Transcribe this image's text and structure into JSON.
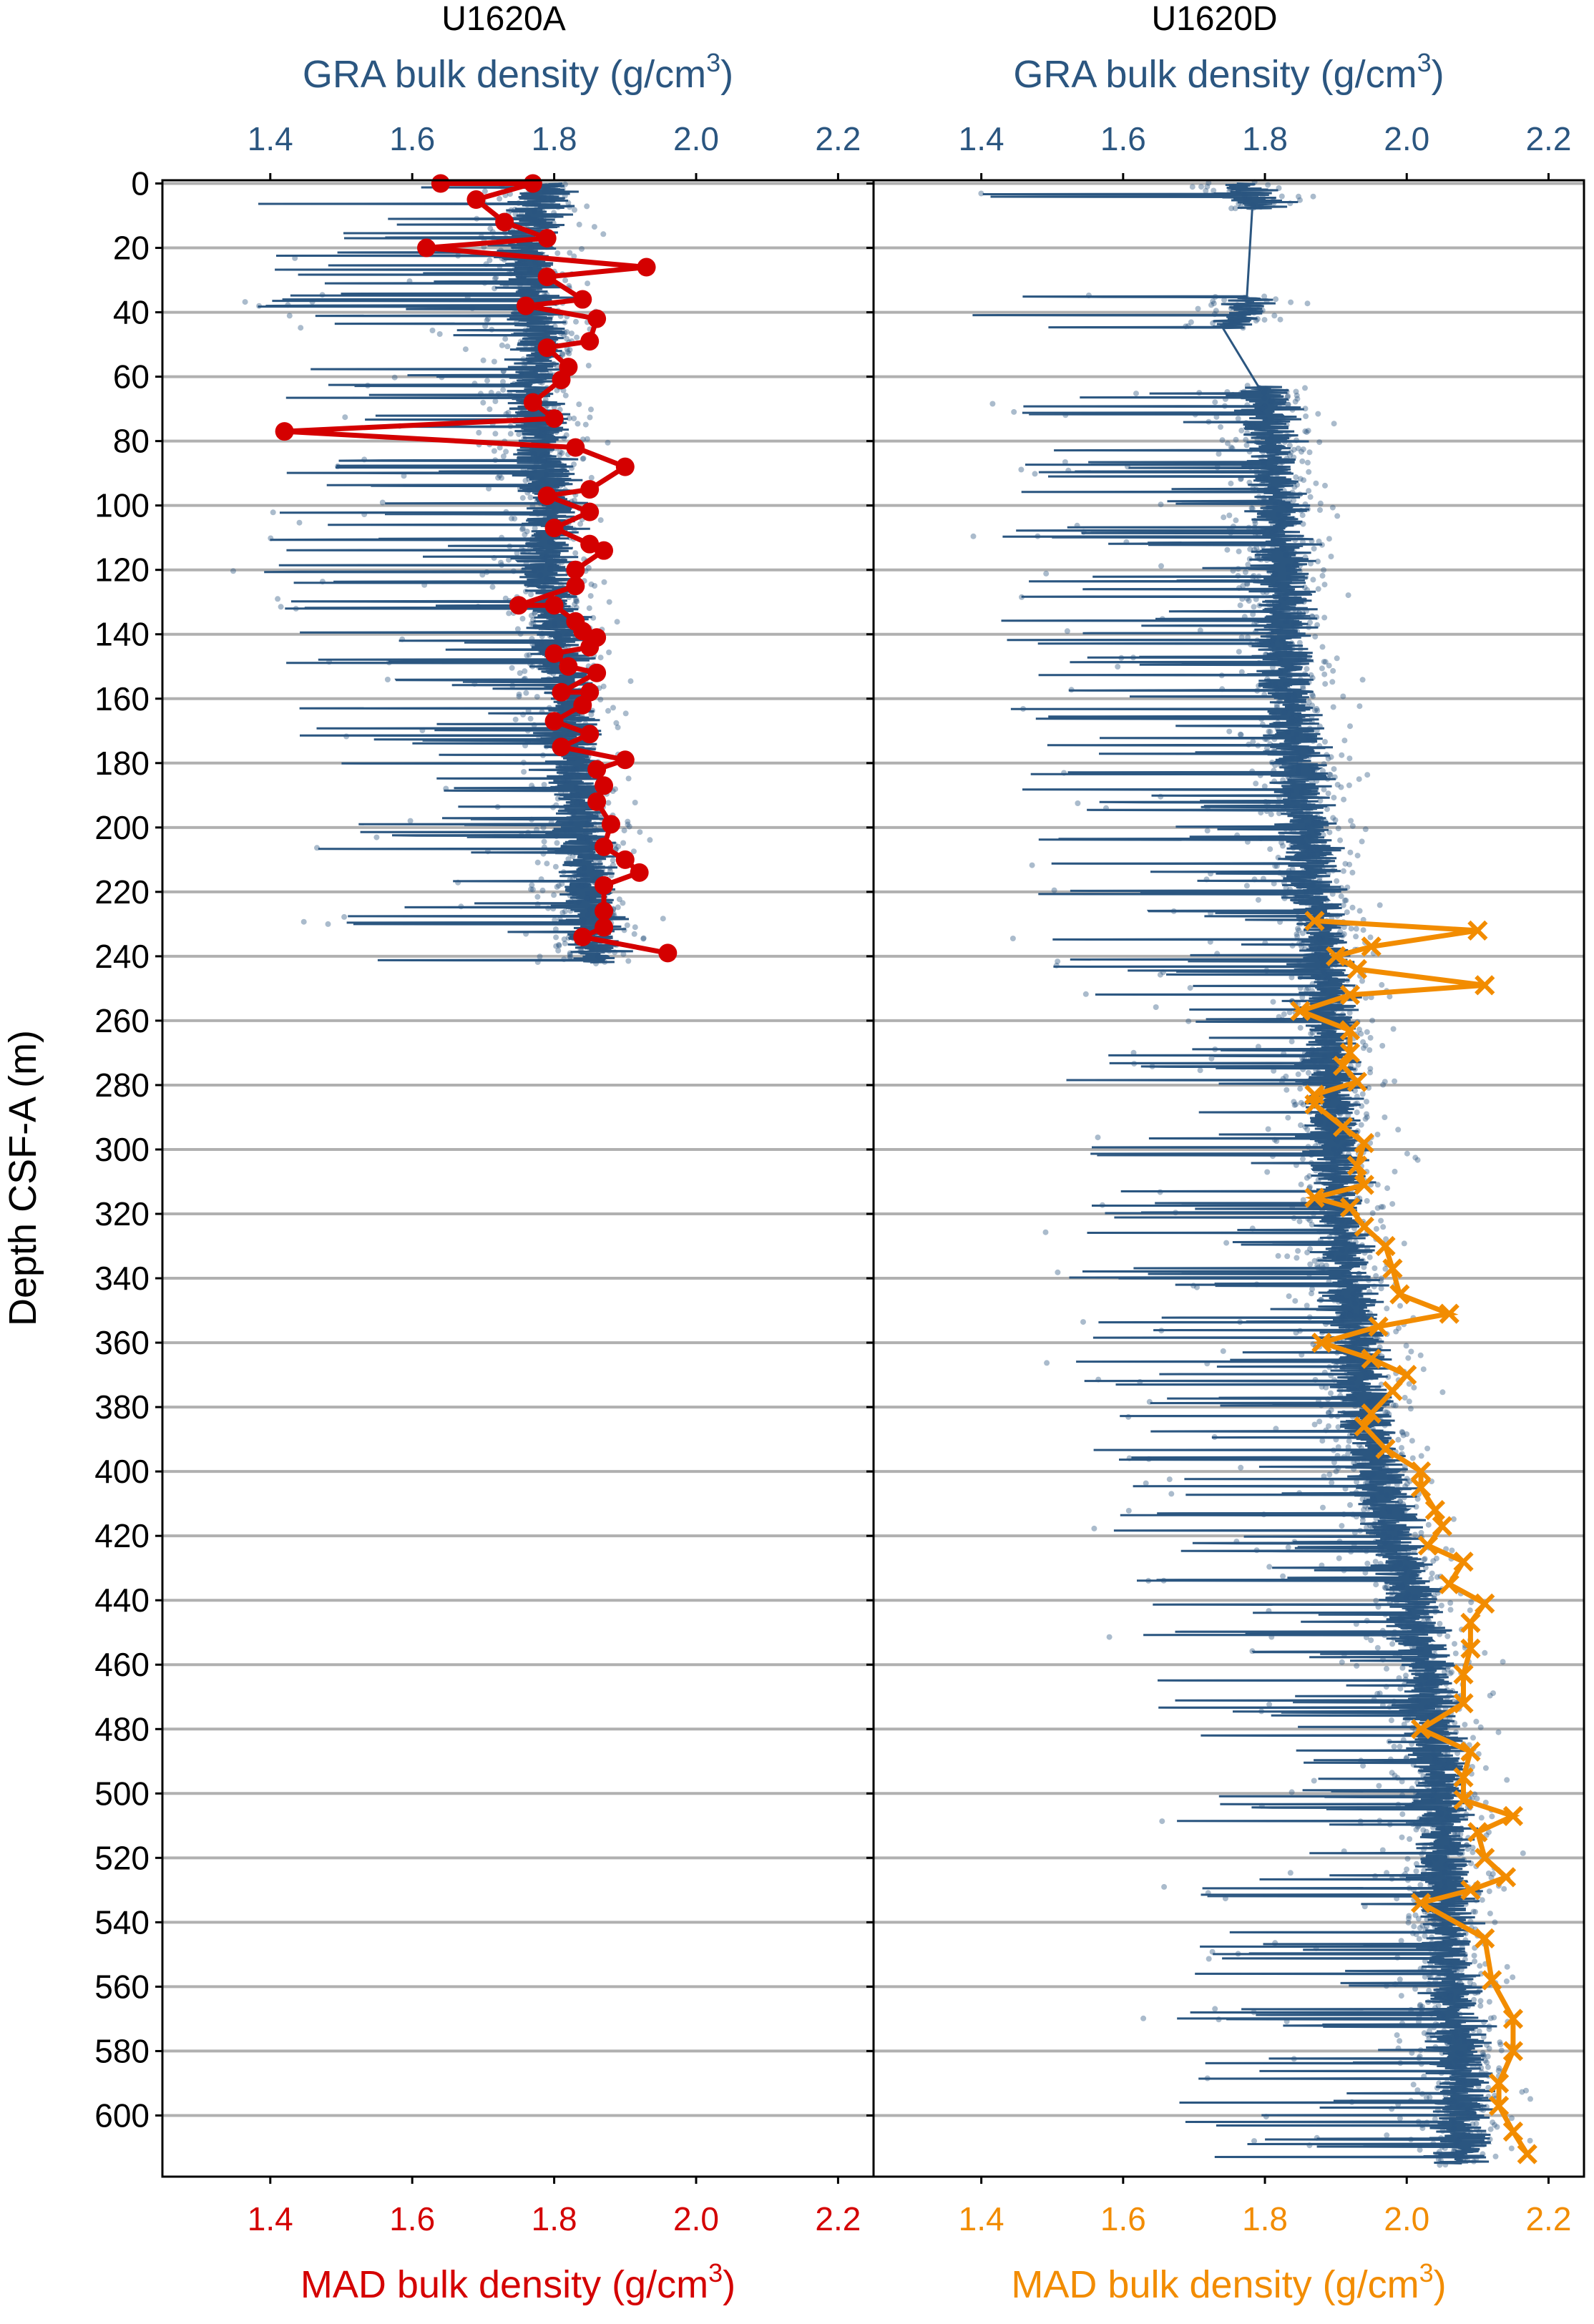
{
  "chart_data": [
    {
      "type": "scatter",
      "title": "U1620A",
      "top_axis": {
        "label_pre": "GRA bulk density (g/cm",
        "label_sup": "3",
        "label_post": ")",
        "color": "#2b5680"
      },
      "bottom_axis": {
        "label_pre": "MAD bulk density (g/cm",
        "label_sup": "3",
        "label_post": ")",
        "color": "#d40000"
      },
      "ylabel": "Depth CSF-A (m)",
      "xlim": [
        1.248,
        2.25
      ],
      "ylim": [
        619,
        -1
      ],
      "xticks": [
        "1.4",
        "1.6",
        "1.8",
        "2.0",
        "2.2"
      ],
      "yticks": [
        "0",
        "20",
        "40",
        "60",
        "80",
        "100",
        "120",
        "140",
        "160",
        "180",
        "200",
        "220",
        "240",
        "260",
        "280",
        "300",
        "320",
        "340",
        "360",
        "380",
        "400",
        "420",
        "440",
        "460",
        "480",
        "500",
        "520",
        "540",
        "560",
        "580",
        "600"
      ],
      "grid": "horizontal",
      "gra_trend": {
        "depth": [
          0,
          20,
          40,
          60,
          80,
          100,
          120,
          140,
          160,
          180,
          200,
          220,
          242
        ],
        "density": [
          1.79,
          1.76,
          1.78,
          1.77,
          1.78,
          1.8,
          1.79,
          1.81,
          1.82,
          1.83,
          1.84,
          1.85,
          1.86
        ],
        "spread": 0.07
      },
      "mad": {
        "marker": "circle",
        "color": "#d40000",
        "depth": [
          0,
          0,
          5,
          12,
          17,
          20,
          26,
          29,
          36,
          38,
          42,
          49,
          51,
          57,
          61,
          68,
          73,
          77,
          82,
          88,
          95,
          97,
          102,
          107,
          112,
          114,
          120,
          125,
          131,
          131,
          136,
          139,
          141,
          144,
          146,
          150,
          152,
          158,
          158,
          162,
          167,
          171,
          175,
          179,
          182,
          187,
          192,
          199,
          206,
          210,
          214,
          218,
          226,
          231,
          234,
          239
        ],
        "density": [
          1.64,
          1.77,
          1.69,
          1.73,
          1.79,
          1.62,
          1.93,
          1.79,
          1.84,
          1.76,
          1.86,
          1.85,
          1.79,
          1.82,
          1.81,
          1.77,
          1.8,
          1.42,
          1.83,
          1.9,
          1.85,
          1.79,
          1.85,
          1.8,
          1.85,
          1.87,
          1.83,
          1.83,
          1.75,
          1.8,
          1.83,
          1.84,
          1.86,
          1.85,
          1.8,
          1.82,
          1.86,
          1.81,
          1.85,
          1.84,
          1.8,
          1.85,
          1.81,
          1.9,
          1.86,
          1.87,
          1.86,
          1.88,
          1.87,
          1.9,
          1.92,
          1.87,
          1.87,
          1.87,
          1.84,
          1.96
        ]
      }
    },
    {
      "type": "scatter",
      "title": "U1620D",
      "top_axis": {
        "label_pre": "GRA bulk density (g/cm",
        "label_sup": "3",
        "label_post": ")",
        "color": "#2b5680"
      },
      "bottom_axis": {
        "label_pre": "MAD bulk density (g/cm",
        "label_sup": "3",
        "label_post": ")",
        "color": "#f28c00"
      },
      "xlim": [
        1.248,
        2.25
      ],
      "ylim": [
        619,
        -1
      ],
      "xticks": [
        "1.4",
        "1.6",
        "1.8",
        "2.0",
        "2.2"
      ],
      "grid": "horizontal",
      "gra_trend": {
        "depth": [
          0,
          8,
          35,
          45,
          63,
          100,
          150,
          200,
          250,
          300,
          350,
          400,
          450,
          500,
          550,
          600,
          615
        ],
        "density": [
          1.76,
          1.8,
          1.78,
          1.76,
          1.8,
          1.82,
          1.83,
          1.86,
          1.89,
          1.9,
          1.92,
          1.96,
          2.02,
          2.05,
          2.06,
          2.08,
          2.08
        ],
        "segments": [
          [
            0,
            8
          ],
          [
            35,
            45
          ],
          [
            63,
            615
          ]
        ],
        "spread": 0.07
      },
      "mad": {
        "marker": "x",
        "color": "#f28c00",
        "depth": [
          229,
          232,
          237,
          240,
          244,
          249,
          252,
          257,
          263,
          270,
          274,
          279,
          283,
          286,
          293,
          298,
          305,
          311,
          315,
          318,
          324,
          330,
          337,
          345,
          351,
          355,
          360,
          365,
          370,
          375,
          382,
          386,
          393,
          400,
          405,
          412,
          417,
          423,
          428,
          435,
          441,
          447,
          455,
          463,
          472,
          480,
          487,
          495,
          502,
          507,
          512,
          520,
          526,
          530,
          534,
          545,
          558,
          570,
          580,
          590,
          597,
          605,
          612
        ],
        "density": [
          1.87,
          2.1,
          1.95,
          1.9,
          1.93,
          2.11,
          1.92,
          1.85,
          1.92,
          1.92,
          1.91,
          1.93,
          1.87,
          1.87,
          1.91,
          1.94,
          1.93,
          1.94,
          1.87,
          1.92,
          1.94,
          1.97,
          1.98,
          1.99,
          2.06,
          1.96,
          1.88,
          1.95,
          2.0,
          1.98,
          1.95,
          1.94,
          1.97,
          2.02,
          2.02,
          2.04,
          2.05,
          2.03,
          2.08,
          2.06,
          2.11,
          2.09,
          2.09,
          2.08,
          2.08,
          2.02,
          2.09,
          2.08,
          2.08,
          2.15,
          2.1,
          2.11,
          2.14,
          2.09,
          2.02,
          2.11,
          2.12,
          2.15,
          2.15,
          2.13,
          2.13,
          2.15,
          2.17
        ]
      }
    }
  ]
}
